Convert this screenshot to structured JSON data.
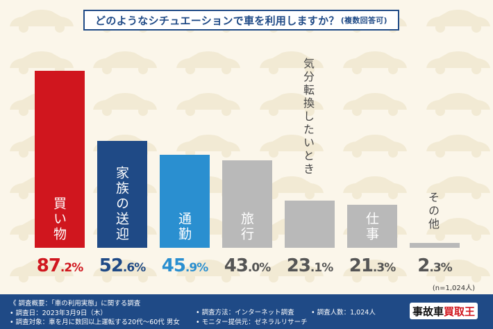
{
  "title": {
    "main": "どのようなシチュエーションで車を利用しますか？",
    "sub": "(複数回答可)"
  },
  "chart_data": {
    "type": "bar",
    "title": "どのようなシチュエーションで車を利用しますか？(複数回答可)",
    "categories": [
      "買い物",
      "家族の送迎",
      "通勤",
      "旅行",
      "気分転換したいとき",
      "仕事",
      "その他"
    ],
    "values": [
      87.2,
      52.6,
      45.9,
      43.0,
      23.1,
      21.3,
      2.3
    ],
    "value_labels": [
      {
        "int": "87",
        "dec": ".2",
        "unit": "%"
      },
      {
        "int": "52",
        "dec": ".6",
        "unit": "%"
      },
      {
        "int": "45",
        "dec": ".9",
        "unit": "%"
      },
      {
        "int": "43",
        "dec": ".0",
        "unit": "%"
      },
      {
        "int": "23",
        "dec": ".1",
        "unit": "%"
      },
      {
        "int": "21",
        "dec": ".3",
        "unit": "%"
      },
      {
        "int": "2",
        "dec": ".3",
        "unit": "%"
      }
    ],
    "bar_colors": [
      "#d0161e",
      "#1f4a86",
      "#2a8fd0",
      "#b9b9b9",
      "#b9b9b9",
      "#b9b9b9",
      "#b9b9b9"
    ],
    "label_colors": [
      "#d0161e",
      "#1f4a86",
      "#2a8fd0",
      "#555555",
      "#555555",
      "#555555",
      "#555555"
    ],
    "ylim": [
      0,
      100
    ],
    "xlabel": "",
    "ylabel": ""
  },
  "sample_note": "(n=1,024人)",
  "footer": {
    "overview": "《 調査概要：「車の利用実態」に関する調査",
    "date": "• 調査日：2023年3月9日（木）",
    "target": "• 調査対象：車を月に数回以上運転する20代～60代 男女",
    "method": "• 調査方法：インターネット調査",
    "monitor": "• モニター提供元：ゼネラルリサーチ",
    "count": "• 調査人数：1,024人",
    "logo_a": "事故車",
    "logo_b": "買取王"
  },
  "colors": {
    "brand": "#1f4a86",
    "accent": "#d0161e",
    "bg": "#fbf6ea"
  }
}
